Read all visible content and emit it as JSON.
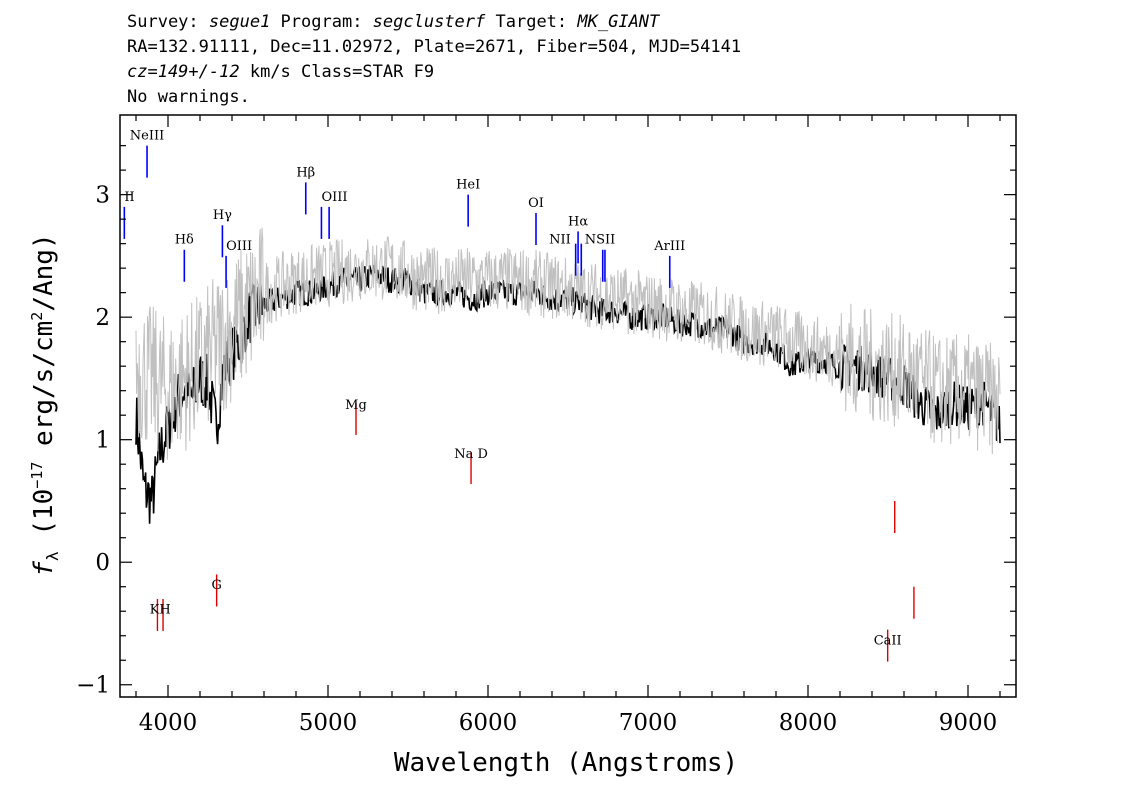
{
  "header": {
    "line1": {
      "survey_label": "Survey: ",
      "survey": "segue1",
      "program_label": " Program: ",
      "program": "segclusterf",
      "target_label": " Target: ",
      "target": "MK_GIANT"
    },
    "line2": "RA=132.91111, Dec=11.02972, Plate=2671, Fiber=504, MJD=54141",
    "line3": {
      "cz": "cz=149+/-12",
      "rest": " km/s Class=STAR F9"
    },
    "line4": "No warnings."
  },
  "chart_data": {
    "type": "line",
    "xlabel": "Wavelength (Angstroms)",
    "ylabel": "f_λ (10^-17 erg/s/cm²/Ang)",
    "xlim": [
      3700,
      9300
    ],
    "ylim": [
      -1.1,
      3.65
    ],
    "x_ticks": [
      4000,
      5000,
      6000,
      7000,
      8000,
      9000
    ],
    "y_ticks": [
      -1,
      0,
      1,
      2,
      3
    ],
    "series": [
      {
        "role": "flux",
        "color": "#000000",
        "x": [
          3800,
          3850,
          3900,
          3950,
          4000,
          4050,
          4100,
          4150,
          4200,
          4250,
          4300,
          4350,
          4400,
          4450,
          4500,
          4600,
          4700,
          4800,
          4900,
          5000,
          5100,
          5200,
          5300,
          5400,
          5500,
          5600,
          5700,
          5800,
          5900,
          6000,
          6100,
          6200,
          6300,
          6400,
          6500,
          6600,
          6700,
          6800,
          6900,
          7000,
          7100,
          7200,
          7300,
          7400,
          7500,
          7600,
          7700,
          7800,
          7900,
          8000,
          8100,
          8200,
          8300,
          8400,
          8500,
          8600,
          8700,
          8800,
          8900,
          9000,
          9100,
          9200
        ],
        "y": [
          1.2,
          0.6,
          0.5,
          0.9,
          1.1,
          1.3,
          1.4,
          1.35,
          1.5,
          1.45,
          1.1,
          1.6,
          1.7,
          1.8,
          2.0,
          2.1,
          2.15,
          2.2,
          2.2,
          2.25,
          2.3,
          2.3,
          2.35,
          2.3,
          2.3,
          2.2,
          2.2,
          2.2,
          2.15,
          2.2,
          2.2,
          2.2,
          2.2,
          2.15,
          2.15,
          2.1,
          2.05,
          2.05,
          2.0,
          2.0,
          2.0,
          1.95,
          1.95,
          1.9,
          1.9,
          1.8,
          1.8,
          1.75,
          1.6,
          1.65,
          1.65,
          1.6,
          1.6,
          1.55,
          1.5,
          1.45,
          1.3,
          1.2,
          1.3,
          1.25,
          1.3,
          1.1
        ]
      },
      {
        "role": "error",
        "color": "#c0c0c0",
        "x": [
          3800,
          4000,
          4200,
          4400,
          4600,
          4800,
          5000,
          5200,
          5400,
          5600,
          5800,
          6000,
          6200,
          6400,
          6600,
          6800,
          7000,
          7200,
          7400,
          7600,
          7800,
          8000,
          8200,
          8400,
          8600,
          8800,
          9000,
          9200
        ],
        "y": [
          1.6,
          1.4,
          1.6,
          1.9,
          2.2,
          2.3,
          2.35,
          2.4,
          2.4,
          2.3,
          2.3,
          2.3,
          2.3,
          2.25,
          2.2,
          2.15,
          2.1,
          2.05,
          2.0,
          1.9,
          1.85,
          1.75,
          1.7,
          1.6,
          1.55,
          1.4,
          1.4,
          1.3
        ]
      }
    ],
    "emission_lines": [
      {
        "name": "NeIII",
        "wavelength": 3869,
        "y": 3.4,
        "color": "blue"
      },
      {
        "name": "OII",
        "wavelength": 3727,
        "y": 2.9,
        "color": "blue"
      },
      {
        "name": "Hδ",
        "wavelength": 4102,
        "y": 2.55,
        "color": "blue"
      },
      {
        "name": "Hγ",
        "wavelength": 4340,
        "y": 2.75,
        "color": "blue"
      },
      {
        "name": "OIII",
        "wavelength": 4363,
        "y": 2.5,
        "color": "blue"
      },
      {
        "name": "Hβ",
        "wavelength": 4861,
        "y": 3.1,
        "color": "blue"
      },
      {
        "name": "OIII",
        "wavelength": 4959,
        "y": 2.9,
        "color": "blue"
      },
      {
        "name": "OIII",
        "wavelength": 5007,
        "y": 2.9,
        "color": "blue"
      },
      {
        "name": "HeI",
        "wavelength": 5876,
        "y": 3.0,
        "color": "blue"
      },
      {
        "name": "OI",
        "wavelength": 6300,
        "y": 2.85,
        "color": "blue"
      },
      {
        "name": "NII",
        "wavelength": 6548,
        "y": 2.6,
        "color": "blue"
      },
      {
        "name": "Hα",
        "wavelength": 6563,
        "y": 2.7,
        "color": "blue"
      },
      {
        "name": "NII",
        "wavelength": 6583,
        "y": 2.6,
        "color": "blue"
      },
      {
        "name": "SII",
        "wavelength": 6717,
        "y": 2.55,
        "color": "blue"
      },
      {
        "name": "SII",
        "wavelength": 6731,
        "y": 2.55,
        "color": "blue"
      },
      {
        "name": "ArIII",
        "wavelength": 7136,
        "y": 2.5,
        "color": "blue"
      }
    ],
    "absorption_lines": [
      {
        "name": "K",
        "wavelength": 3934,
        "y": -0.3,
        "color": "red"
      },
      {
        "name": "H",
        "wavelength": 3969,
        "y": -0.3,
        "color": "red"
      },
      {
        "name": "G",
        "wavelength": 4304,
        "y": -0.1,
        "color": "red"
      },
      {
        "name": "Mg",
        "wavelength": 5175,
        "y": 1.3,
        "color": "red"
      },
      {
        "name": "Na",
        "wavelength": 5894,
        "y": 0.9,
        "color": "red"
      },
      {
        "name": "CaII",
        "wavelength": 8498,
        "y": -0.55,
        "color": "red"
      },
      {
        "name": "CaII",
        "wavelength": 8542,
        "y": 0.5,
        "color": "red"
      },
      {
        "name": "CaII",
        "wavelength": 8662,
        "y": -0.2,
        "color": "red"
      }
    ],
    "line_labels": {
      "NeIII": "NeIII",
      "OII": "II",
      "Hdelta": "Hδ",
      "Hgamma": "Hγ",
      "OIII_4363": "OIII",
      "Hbeta": "Hβ",
      "OIII_5007": "OIII",
      "HeI": "HeI",
      "OI": "OI",
      "NII": "NII",
      "Halpha": "Hα",
      "NSII": "NSII",
      "ArIII": "ArIII",
      "KH": "KH",
      "G": "G",
      "Mg": "Mg",
      "NaD": "Na D",
      "CaII": "CaII"
    }
  }
}
